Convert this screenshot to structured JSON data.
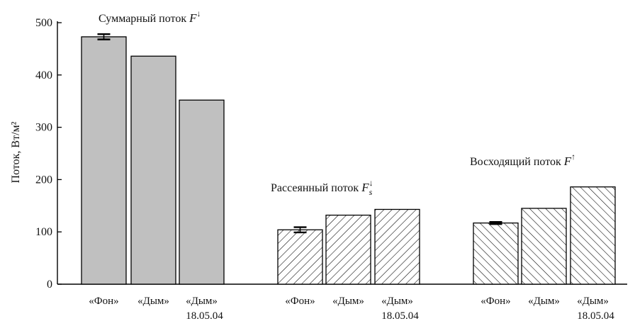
{
  "chart_data": {
    "type": "bar",
    "ylabel": "Поток, Вт/м²",
    "ylim": [
      0,
      500
    ],
    "yticks": [
      0,
      100,
      200,
      300,
      400,
      500
    ],
    "grid": false,
    "groups": [
      {
        "title": "Суммарный поток",
        "symbol": "F",
        "superscript": "↓",
        "subscript": "",
        "fill": "solid",
        "categories": [
          "«Фон»",
          "«Дым»",
          "«Дым»"
        ],
        "sublabels": [
          "",
          "",
          "18.05.04"
        ],
        "values": [
          473,
          436,
          352
        ],
        "errors": [
          5,
          0,
          0
        ]
      },
      {
        "title": "Рассеянный поток",
        "symbol": "F",
        "superscript": "↓",
        "subscript": "s",
        "fill": "hatch-back",
        "categories": [
          "«Фон»",
          "«Дым»",
          "«Дым»"
        ],
        "sublabels": [
          "",
          "",
          "18.05.04"
        ],
        "values": [
          104,
          132,
          143
        ],
        "errors": [
          5,
          0,
          0
        ]
      },
      {
        "title": "Восходящий поток",
        "symbol": "F",
        "superscript": "↑",
        "subscript": "",
        "fill": "hatch-forward",
        "categories": [
          "«Фон»",
          "«Дым»",
          "«Дым»"
        ],
        "sublabels": [
          "",
          "",
          "18.05.04"
        ],
        "values": [
          117,
          145,
          186
        ],
        "errors": [
          2,
          0,
          0
        ]
      }
    ],
    "colors": {
      "bar_solid": "#c0c0c0",
      "stroke": "#000000",
      "background": "#ffffff"
    }
  }
}
